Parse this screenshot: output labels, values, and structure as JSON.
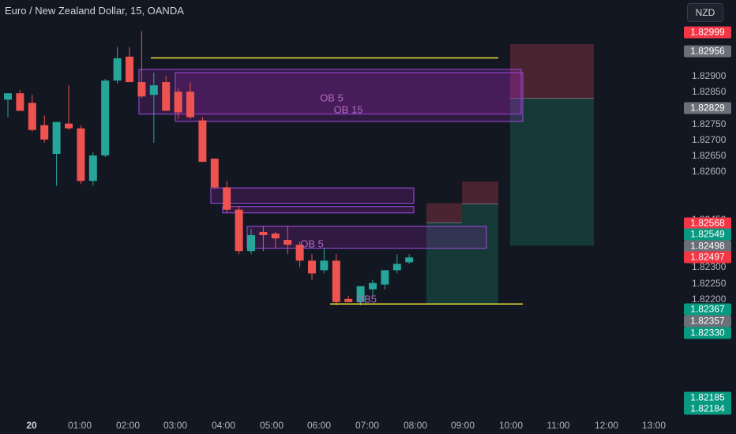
{
  "header": {
    "symbol_title": "Euro / New Zealand Dollar, 15, OANDA",
    "currency_button": "NZD"
  },
  "colors": {
    "background": "#131722",
    "bull": "#26a69a",
    "bear": "#ef5350",
    "order_block": "#9c27b0",
    "level_line": "#f0e03a",
    "stop_zone": "#5d2a35",
    "target_zone": "#17423d"
  },
  "y_axis": {
    "ticks": [
      "1.82900",
      "1.82850",
      "1.82800",
      "1.82750",
      "1.82700",
      "1.82650",
      "1.82600",
      "1.82450",
      "1.82400",
      "1.82300",
      "1.82250",
      "1.82200"
    ]
  },
  "x_axis": {
    "ticks": [
      "20",
      "01:00",
      "02:00",
      "03:00",
      "04:00",
      "05:00",
      "06:00",
      "07:00",
      "08:00",
      "09:00",
      "10:00",
      "11:00",
      "12:00",
      "13:00"
    ]
  },
  "price_badges": [
    {
      "value": "1.82999",
      "color": "#f23645"
    },
    {
      "value": "1.82956",
      "color": "#6b6f78"
    },
    {
      "value": "1.82829",
      "color": "#6b6f78"
    },
    {
      "value": "1.82568",
      "color": "#f23645"
    },
    {
      "value": "1.82549",
      "color": "#089981"
    },
    {
      "value": "1.82498",
      "color": "#6b6f78"
    },
    {
      "value": "1.82497",
      "color": "#f23645"
    },
    {
      "value": "1.82367",
      "color": "#089981"
    },
    {
      "value": "1.82357",
      "color": "#6b6f78"
    },
    {
      "value": "1.82330",
      "color": "#089981"
    },
    {
      "value": "1.82185",
      "color": "#089981"
    },
    {
      "value": "1.82184",
      "color": "#089981"
    }
  ],
  "order_blocks": {
    "upper_label_1": "OB 5",
    "upper_label_2": "OB 15",
    "mid_label": "OB 5",
    "lower_label": "OB5"
  },
  "chart_data": {
    "type": "candlestick",
    "interval": "15",
    "candles": [
      {
        "o": 1.82825,
        "h": 1.82845,
        "l": 1.8277,
        "c": 1.82845
      },
      {
        "o": 1.82845,
        "h": 1.82855,
        "l": 1.8279,
        "c": 1.8279
      },
      {
        "o": 1.82815,
        "h": 1.8284,
        "l": 1.82725,
        "c": 1.8273
      },
      {
        "o": 1.82745,
        "h": 1.82775,
        "l": 1.8269,
        "c": 1.827
      },
      {
        "o": 1.82655,
        "h": 1.82755,
        "l": 1.82555,
        "c": 1.82755
      },
      {
        "o": 1.8275,
        "h": 1.8287,
        "l": 1.8273,
        "c": 1.82735
      },
      {
        "o": 1.82735,
        "h": 1.82745,
        "l": 1.8256,
        "c": 1.8257
      },
      {
        "o": 1.8257,
        "h": 1.8266,
        "l": 1.82555,
        "c": 1.8265
      },
      {
        "o": 1.8265,
        "h": 1.8289,
        "l": 1.82645,
        "c": 1.82885
      },
      {
        "o": 1.82885,
        "h": 1.8299,
        "l": 1.82875,
        "c": 1.82955
      },
      {
        "o": 1.8296,
        "h": 1.8299,
        "l": 1.8288,
        "c": 1.8288
      },
      {
        "o": 1.8288,
        "h": 1.8304,
        "l": 1.8283,
        "c": 1.82835
      },
      {
        "o": 1.8284,
        "h": 1.8291,
        "l": 1.8269,
        "c": 1.8287
      },
      {
        "o": 1.8288,
        "h": 1.829,
        "l": 1.8279,
        "c": 1.8279
      },
      {
        "o": 1.8285,
        "h": 1.8286,
        "l": 1.82765,
        "c": 1.82785
      },
      {
        "o": 1.8285,
        "h": 1.8288,
        "l": 1.82765,
        "c": 1.8277
      },
      {
        "o": 1.8276,
        "h": 1.8277,
        "l": 1.8263,
        "c": 1.8263
      },
      {
        "o": 1.8264,
        "h": 1.8264,
        "l": 1.82545,
        "c": 1.8255
      },
      {
        "o": 1.8255,
        "h": 1.8257,
        "l": 1.8247,
        "c": 1.8248
      },
      {
        "o": 1.8248,
        "h": 1.8249,
        "l": 1.8234,
        "c": 1.8235
      },
      {
        "o": 1.8235,
        "h": 1.8242,
        "l": 1.8234,
        "c": 1.824
      },
      {
        "o": 1.8241,
        "h": 1.8243,
        "l": 1.8235,
        "c": 1.824
      },
      {
        "o": 1.82405,
        "h": 1.8241,
        "l": 1.8236,
        "c": 1.8239
      },
      {
        "o": 1.82385,
        "h": 1.8243,
        "l": 1.8234,
        "c": 1.8237
      },
      {
        "o": 1.8237,
        "h": 1.8238,
        "l": 1.823,
        "c": 1.8232
      },
      {
        "o": 1.8232,
        "h": 1.8234,
        "l": 1.8226,
        "c": 1.8228
      },
      {
        "o": 1.8229,
        "h": 1.8236,
        "l": 1.8228,
        "c": 1.8232
      },
      {
        "o": 1.8232,
        "h": 1.8234,
        "l": 1.8218,
        "c": 1.8219
      },
      {
        "o": 1.822,
        "h": 1.8221,
        "l": 1.8219,
        "c": 1.8219
      },
      {
        "o": 1.8219,
        "h": 1.8224,
        "l": 1.8218,
        "c": 1.8224
      },
      {
        "o": 1.8223,
        "h": 1.8226,
        "l": 1.8221,
        "c": 1.8225
      },
      {
        "o": 1.82245,
        "h": 1.8229,
        "l": 1.8223,
        "c": 1.8229
      },
      {
        "o": 1.8229,
        "h": 1.8234,
        "l": 1.8228,
        "c": 1.8231
      },
      {
        "o": 1.82315,
        "h": 1.8234,
        "l": 1.8231,
        "c": 1.8233
      }
    ],
    "order_block_zones": [
      {
        "label": "OB 5",
        "from_price": 1.8278,
        "to_price": 1.8292
      },
      {
        "label": "OB 15",
        "from_price": 1.82757,
        "to_price": 1.8291
      },
      {
        "label": "OB 5",
        "from_price": 1.825,
        "to_price": 1.82548
      },
      {
        "label": "",
        "from_price": 1.8247,
        "to_price": 1.8249
      },
      {
        "label": "OB5",
        "from_price": 1.82359,
        "to_price": 1.82428
      }
    ],
    "levels": [
      1.82956,
      1.82184
    ],
    "positions": [
      {
        "entry": 1.82829,
        "stop": 1.82999,
        "target": 1.82367
      },
      {
        "entry": 1.82498,
        "stop": 1.82568,
        "target": 1.82184
      },
      {
        "entry": 1.82439,
        "stop": 1.825,
        "target": 1.82184
      }
    ]
  }
}
